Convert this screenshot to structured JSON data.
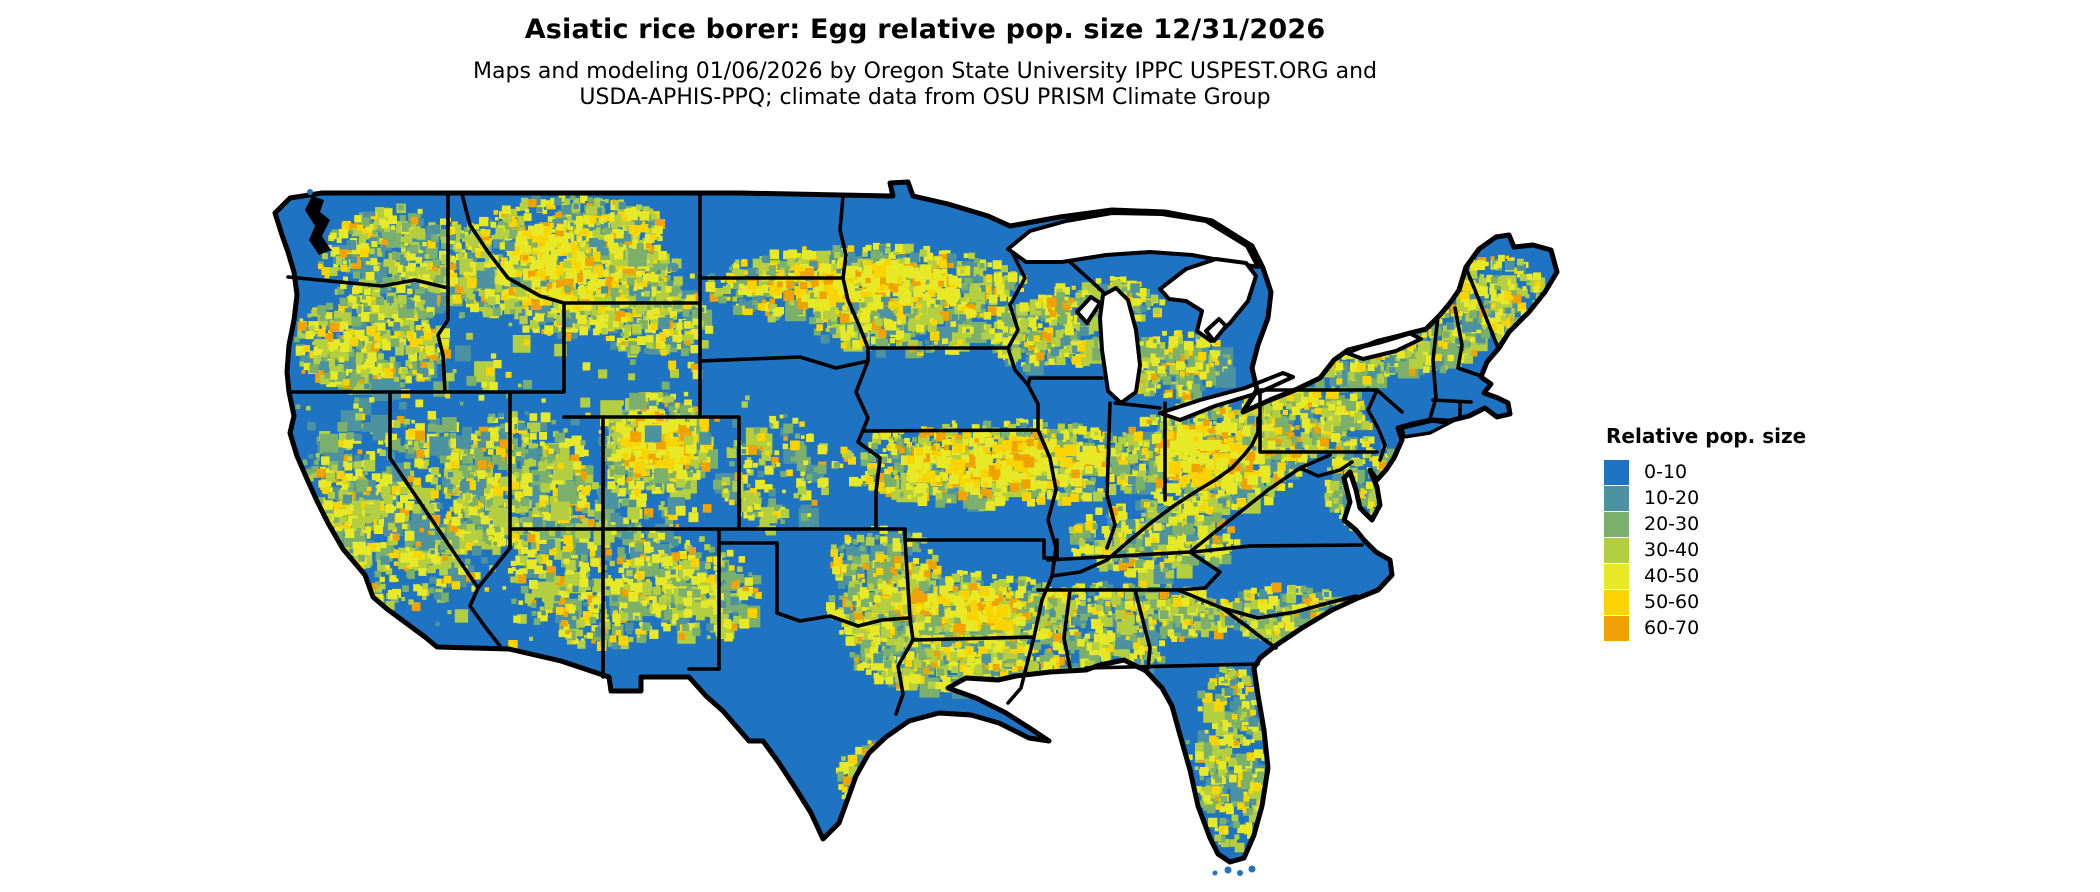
{
  "header": {
    "title": "Asiatic rice borer: Egg relative pop. size 12/31/2026",
    "subtitle_line1": "Maps and modeling 01/06/2026 by Oregon State University IPPC USPEST.ORG and",
    "subtitle_line2": "USDA-APHIS-PPQ; climate data from OSU PRISM Climate Group"
  },
  "legend": {
    "title": "Relative pop. size",
    "items": [
      {
        "label": "0-10",
        "color": "#1e73c2"
      },
      {
        "label": "10-20",
        "color": "#4d92a0"
      },
      {
        "label": "20-30",
        "color": "#7bb06c"
      },
      {
        "label": "30-40",
        "color": "#b3cf41"
      },
      {
        "label": "40-50",
        "color": "#e7e926"
      },
      {
        "label": "50-60",
        "color": "#fbd400"
      },
      {
        "label": "60-70",
        "color": "#f0a202"
      }
    ]
  },
  "map": {
    "base_color": "#1e73c2",
    "border_color": "#000000",
    "water_color": "#ffffff"
  }
}
